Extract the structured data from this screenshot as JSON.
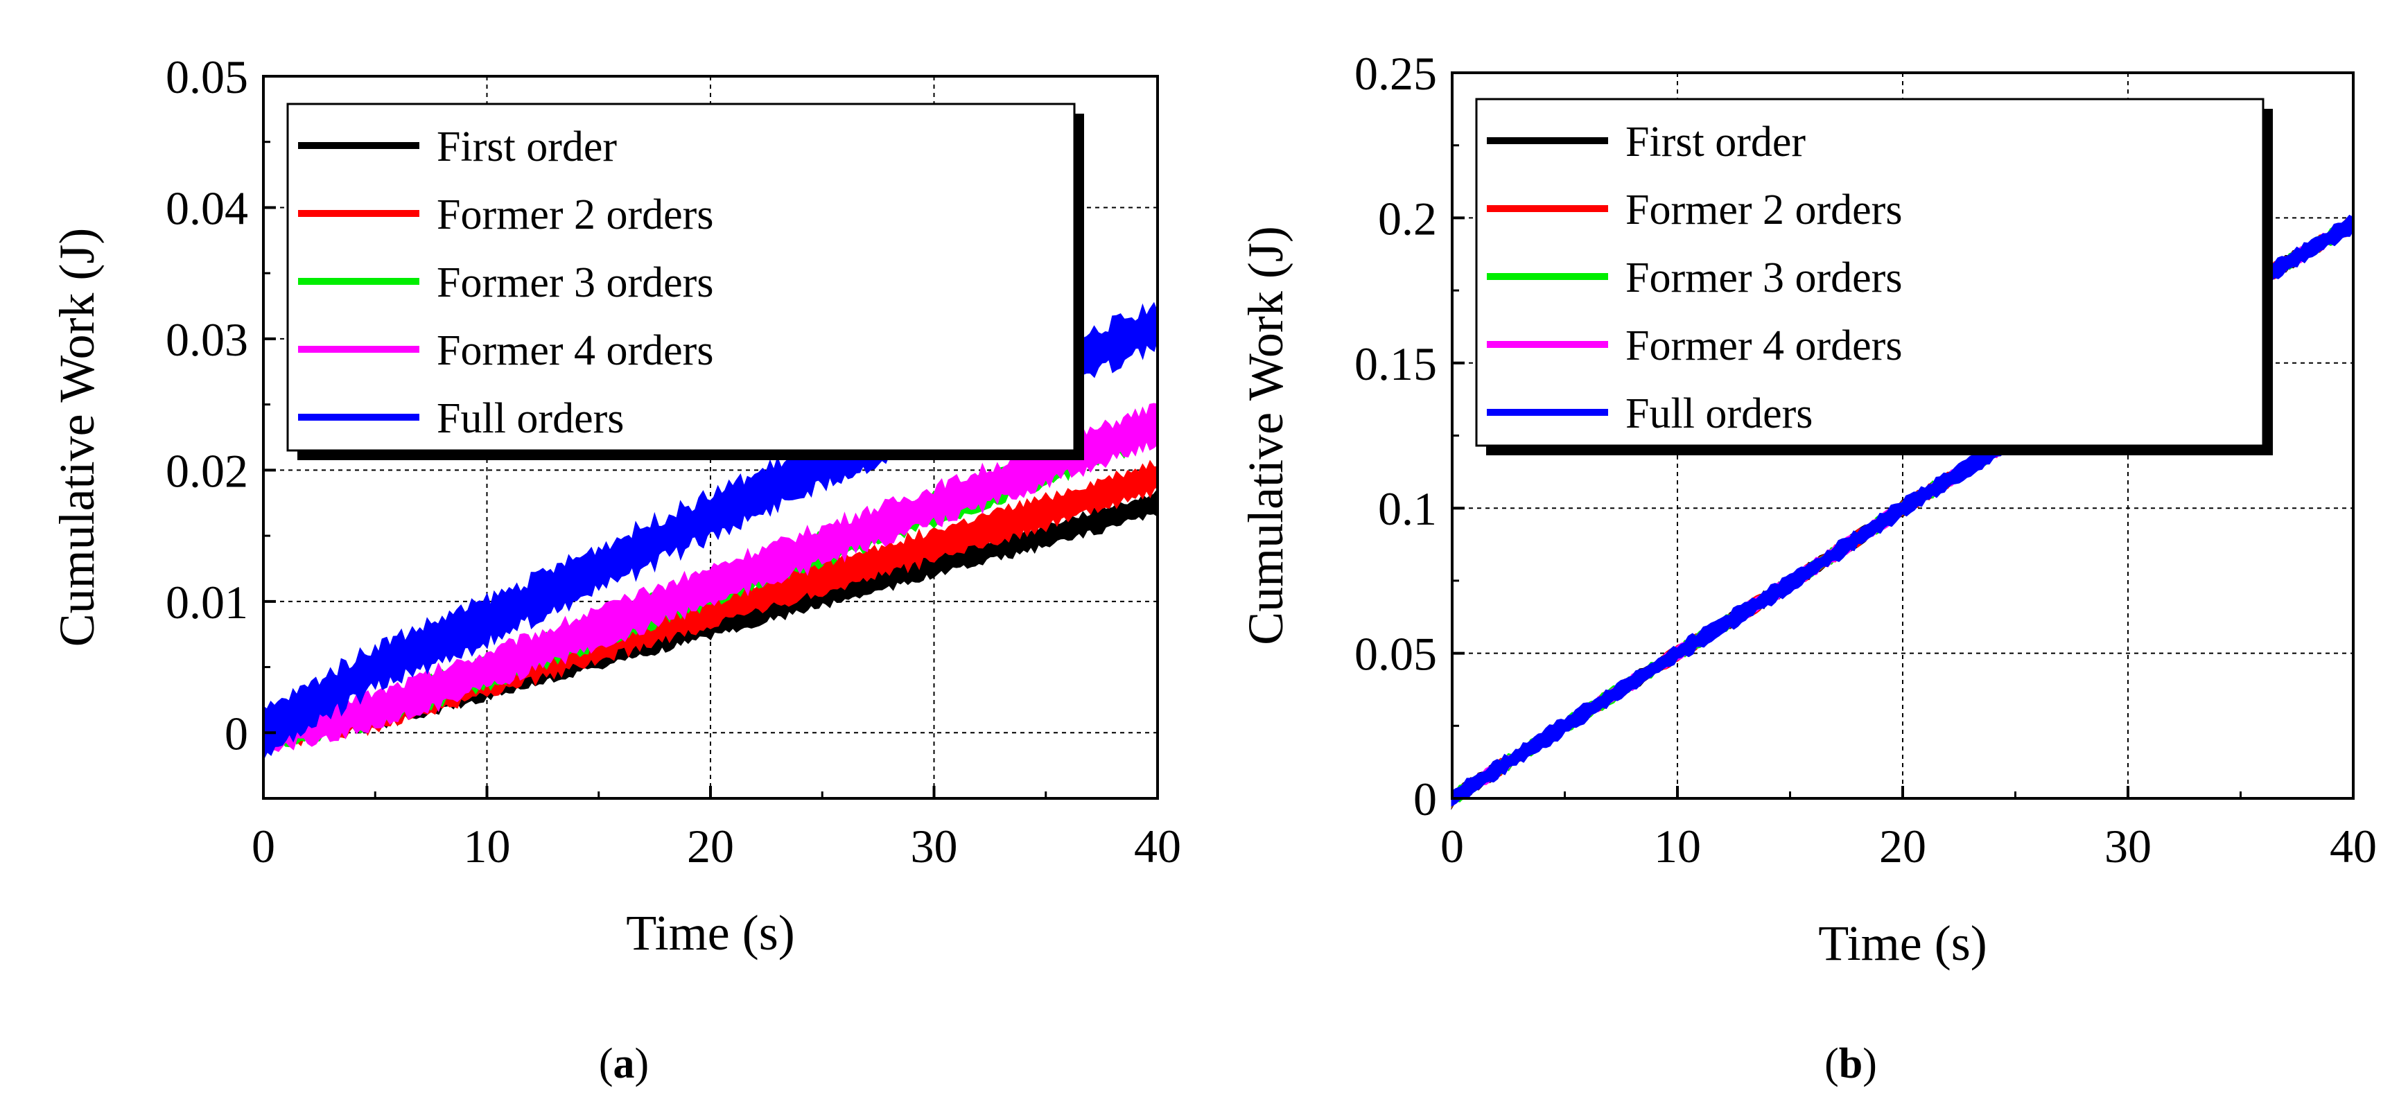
{
  "colors": {
    "first_order": "#000000",
    "former_2": "#ff0000",
    "former_3": "#00ee00",
    "former_4": "#ff00ff",
    "full": "#0000ff",
    "grid": "#000000"
  },
  "chart_data": [
    {
      "panel": "a",
      "type": "line",
      "title": "",
      "xlabel": "Time (s)",
      "ylabel": "Cumulative Work (J)",
      "xlim": [
        0,
        40
      ],
      "ylim": [
        -0.005,
        0.05
      ],
      "xticks": [
        0,
        10,
        20,
        30,
        40
      ],
      "xtick_labels": [
        "0",
        "10",
        "20",
        "30",
        "40"
      ],
      "yticks": [
        0,
        0.01,
        0.02,
        0.03,
        0.04,
        0.05
      ],
      "ytick_labels": [
        "0",
        "0.01",
        "0.02",
        "0.03",
        "0.04",
        "0.05"
      ],
      "grid": true,
      "legend_position": "top-left",
      "x": [
        0,
        5,
        10,
        15,
        20,
        25,
        30,
        35,
        40
      ],
      "series": [
        {
          "name": "First order",
          "color_key": "first_order",
          "band": 0.0015,
          "values": [
            0.0,
            0.0012,
            0.0035,
            0.0058,
            0.0082,
            0.0105,
            0.0128,
            0.015,
            0.0175
          ]
        },
        {
          "name": "Former 2 orders",
          "color_key": "former_2",
          "band": 0.002,
          "values": [
            0.0,
            0.0014,
            0.004,
            0.0066,
            0.0092,
            0.0118,
            0.0143,
            0.0168,
            0.0195
          ]
        },
        {
          "name": "Former 3 orders",
          "color_key": "former_3",
          "band": 0.002,
          "values": [
            0.0,
            0.0016,
            0.0046,
            0.0077,
            0.0109,
            0.014,
            0.017,
            0.02,
            0.0233
          ]
        },
        {
          "name": "Former 4 orders",
          "color_key": "former_4",
          "band": 0.0025,
          "values": [
            0.0,
            0.0017,
            0.0048,
            0.008,
            0.0112,
            0.0143,
            0.0173,
            0.0203,
            0.0235
          ]
        },
        {
          "name": "Full orders",
          "color_key": "full",
          "band": 0.003,
          "values": [
            0.0,
            0.005,
            0.0085,
            0.0125,
            0.0165,
            0.0205,
            0.024,
            0.0275,
            0.031
          ]
        }
      ]
    },
    {
      "panel": "b",
      "type": "line",
      "title": "",
      "xlabel": "Time (s)",
      "ylabel": "Cumulative Work (J)",
      "xlim": [
        0,
        40
      ],
      "ylim": [
        0,
        0.25
      ],
      "xticks": [
        0,
        10,
        20,
        30,
        40
      ],
      "xtick_labels": [
        "0",
        "10",
        "20",
        "30",
        "40"
      ],
      "yticks": [
        0,
        0.05,
        0.1,
        0.15,
        0.2,
        0.25
      ],
      "ytick_labels": [
        "0",
        "0.05",
        "0.1",
        "0.15",
        "0.2",
        "0.25"
      ],
      "grid": true,
      "legend_position": "top-left",
      "x": [
        0,
        5,
        10,
        15,
        20,
        25,
        30,
        35,
        40
      ],
      "series": [
        {
          "name": "First order",
          "color_key": "first_order",
          "band": 0.004,
          "values": [
            0.0,
            0.025,
            0.05,
            0.074,
            0.1,
            0.124,
            0.15,
            0.175,
            0.198
          ]
        },
        {
          "name": "Former 2 orders",
          "color_key": "former_2",
          "band": 0.004,
          "values": [
            0.0,
            0.025,
            0.05,
            0.074,
            0.1,
            0.124,
            0.15,
            0.175,
            0.198
          ]
        },
        {
          "name": "Former 3 orders",
          "color_key": "former_3",
          "band": 0.004,
          "values": [
            0.0,
            0.025,
            0.05,
            0.074,
            0.1,
            0.124,
            0.15,
            0.175,
            0.198
          ]
        },
        {
          "name": "Former 4 orders",
          "color_key": "former_4",
          "band": 0.004,
          "values": [
            0.0,
            0.025,
            0.05,
            0.074,
            0.1,
            0.124,
            0.15,
            0.175,
            0.198
          ]
        },
        {
          "name": "Full orders",
          "color_key": "full",
          "band": 0.005,
          "values": [
            0.0,
            0.025,
            0.05,
            0.074,
            0.1,
            0.124,
            0.15,
            0.175,
            0.198
          ]
        }
      ]
    }
  ],
  "panel_labels": [
    {
      "open": "(",
      "letter": "a",
      "close": ")"
    },
    {
      "open": "(",
      "letter": "b",
      "close": ")"
    }
  ]
}
